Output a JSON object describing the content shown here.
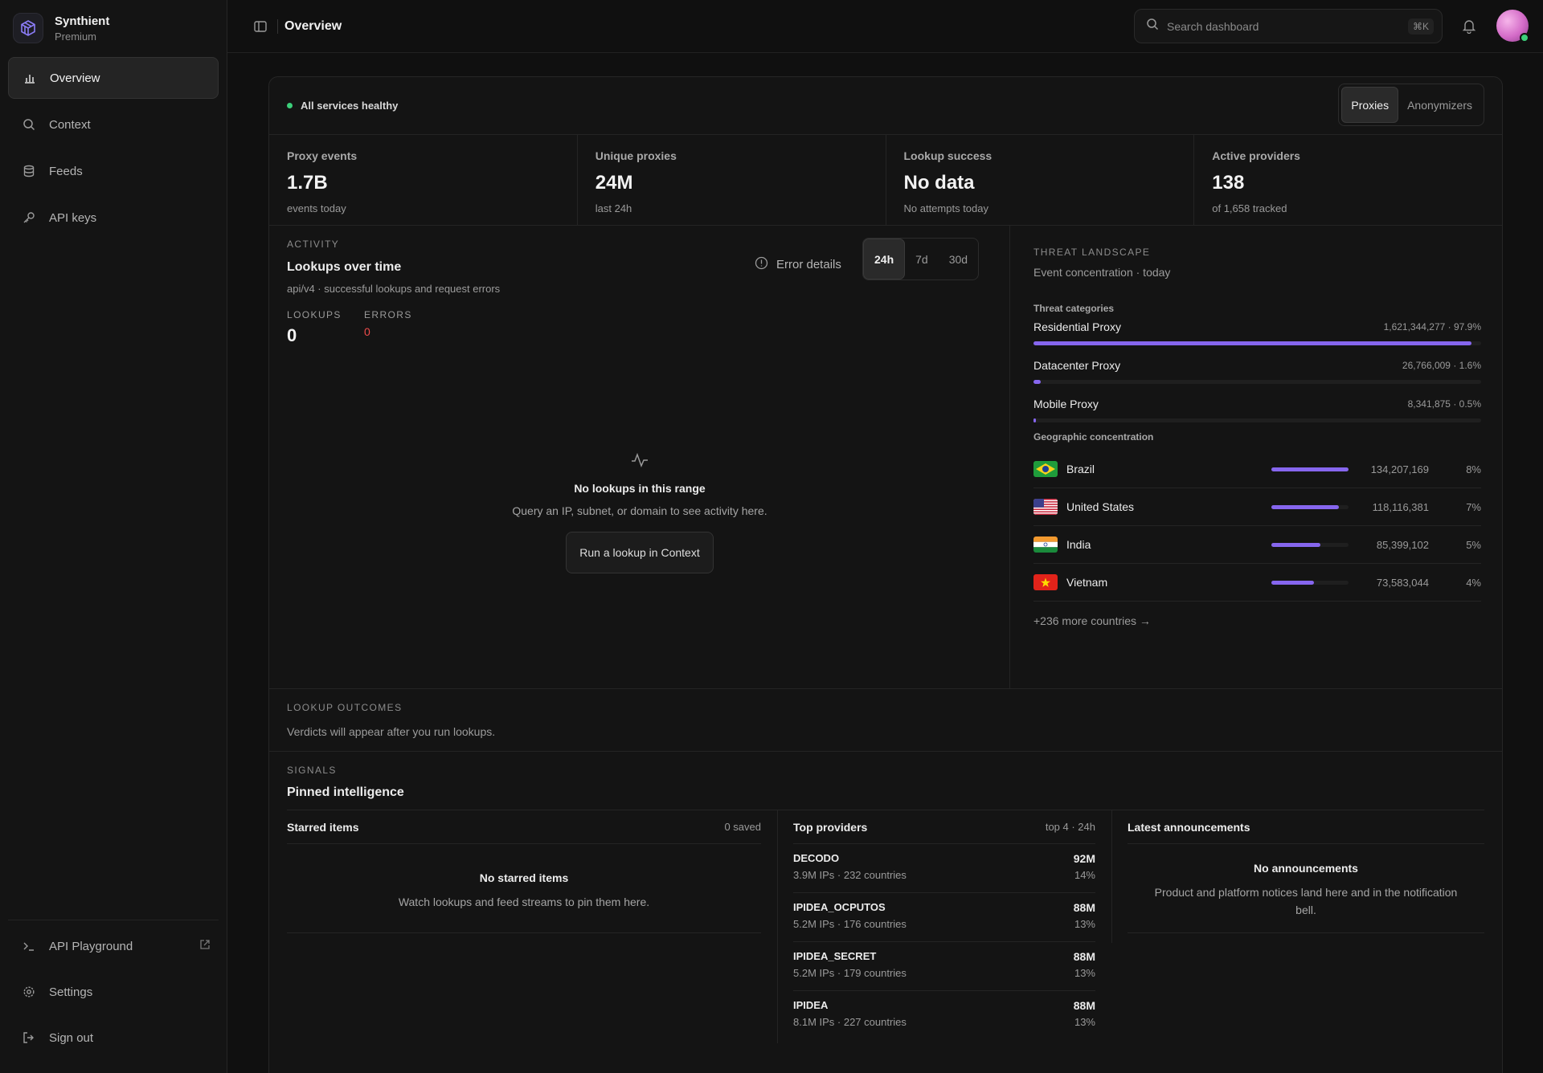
{
  "brand": {
    "name": "Synthient",
    "plan": "Premium"
  },
  "nav": {
    "items": [
      {
        "label": "Overview",
        "icon": "bar-chart-icon",
        "active": true
      },
      {
        "label": "Context",
        "icon": "search-icon"
      },
      {
        "label": "Feeds",
        "icon": "database-icon"
      },
      {
        "label": "API keys",
        "icon": "key-icon"
      }
    ],
    "bottom": [
      {
        "label": "API Playground",
        "icon": "terminal-icon"
      },
      {
        "label": "Settings",
        "icon": "gear-icon"
      },
      {
        "label": "Sign out",
        "icon": "sign-out-icon"
      }
    ]
  },
  "topbar": {
    "title": "Overview",
    "search_placeholder": "Search dashboard",
    "shortcut": "⌘K"
  },
  "status": {
    "text": "All services healthy",
    "color": "#3ccf7a"
  },
  "mode_tabs": {
    "proxies": "Proxies",
    "anonymizers": "Anonymizers"
  },
  "kpis": [
    {
      "label": "Proxy events",
      "value": "1.7B",
      "sub": "events today"
    },
    {
      "label": "Unique proxies",
      "value": "24M",
      "sub": "last 24h"
    },
    {
      "label": "Lookup success",
      "value": "No data",
      "sub": "No attempts today"
    },
    {
      "label": "Active providers",
      "value": "138",
      "sub": "of 1,658 tracked"
    }
  ],
  "activity": {
    "eyebrow": "ACTIVITY",
    "title": "Lookups over time",
    "subtitle": "api/v4 · successful lookups and request errors",
    "error_details": "Error details",
    "ranges": [
      "24h",
      "7d",
      "30d"
    ],
    "lookups_label": "LOOKUPS",
    "lookups_value": "0",
    "errors_label": "ERRORS",
    "errors_value": "0",
    "empty_title": "No lookups in this range",
    "empty_sub": "Query an IP, subnet, or domain to see activity here.",
    "empty_button": "Run a lookup in Context"
  },
  "threat": {
    "eyebrow": "THREAT LANDSCAPE",
    "subtitle": "Event concentration · today",
    "categories_label": "Threat categories",
    "categories": [
      {
        "name": "Residential Proxy",
        "value": "1,621,344,277 · 97.9%",
        "fraction": 0.979
      },
      {
        "name": "Datacenter Proxy",
        "value": "26,766,009 · 1.6%",
        "fraction": 0.016
      },
      {
        "name": "Mobile Proxy",
        "value": "8,341,875 · 0.5%",
        "fraction": 0.005
      }
    ],
    "geo_label": "Geographic concentration",
    "countries": [
      {
        "name": "Brazil",
        "count": "134,207,169",
        "pct": "8%",
        "fraction": 1.0,
        "flag": "brazil-flag-icon"
      },
      {
        "name": "United States",
        "count": "118,116,381",
        "pct": "7%",
        "fraction": 0.88,
        "flag": "us-flag-icon"
      },
      {
        "name": "India",
        "count": "85,399,102",
        "pct": "5%",
        "fraction": 0.64,
        "flag": "india-flag-icon"
      },
      {
        "name": "Vietnam",
        "count": "73,583,044",
        "pct": "4%",
        "fraction": 0.55,
        "flag": "vietnam-flag-icon"
      }
    ],
    "more": "+236 more countries →"
  },
  "outcomes": {
    "eyebrow": "LOOKUP OUTCOMES",
    "subtitle": "Verdicts will appear after you run lookups."
  },
  "signals": {
    "eyebrow": "SIGNALS",
    "title": "Pinned intelligence",
    "starred": {
      "title": "Starred items",
      "meta": "0 saved",
      "empty_title": "No starred items",
      "empty_sub": "Watch lookups and feed streams to pin them here."
    },
    "providers": {
      "title": "Top providers",
      "meta": "top 4 · 24h",
      "items": [
        {
          "name": "DECODO",
          "sub": "3.9M IPs · 232 countries",
          "value": "92M",
          "pct": "14%"
        },
        {
          "name": "IPIDEA_OCPUTOS",
          "sub": "5.2M IPs · 176 countries",
          "value": "88M",
          "pct": "13%"
        },
        {
          "name": "IPIDEA_SECRET",
          "sub": "5.2M IPs · 179 countries",
          "value": "88M",
          "pct": "13%"
        },
        {
          "name": "IPIDEA",
          "sub": "8.1M IPs · 227 countries",
          "value": "88M",
          "pct": "13%"
        }
      ]
    },
    "announcements": {
      "title": "Latest announcements",
      "empty_title": "No announcements",
      "empty_sub": "Product and platform notices land here and in the notification bell."
    }
  },
  "colors": {
    "accent": "#8666ee",
    "error": "#ef4b4b",
    "healthy": "#3ccf7a"
  }
}
